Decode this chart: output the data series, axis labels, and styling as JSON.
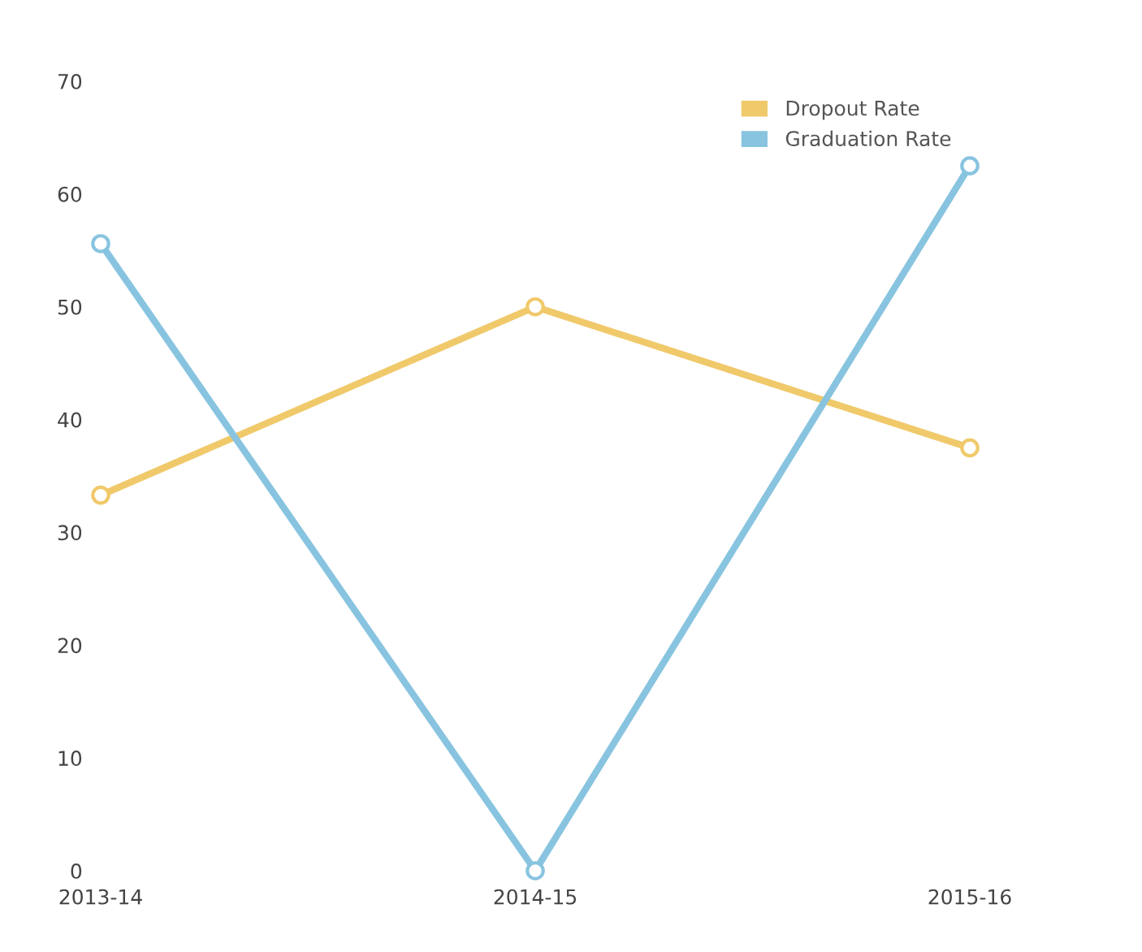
{
  "chart_data": {
    "type": "line",
    "categories": [
      "2013-14",
      "2014-15",
      "2015-16"
    ],
    "series": [
      {
        "name": "Dropout Rate",
        "color": "#f0c96a",
        "values": [
          33.3,
          50,
          37.5
        ]
      },
      {
        "name": "Graduation Rate",
        "color": "#88c4e0",
        "values": [
          55.6,
          0,
          62.5
        ]
      }
    ],
    "ylim": [
      0,
      70
    ],
    "yticks": [
      0,
      10,
      20,
      30,
      40,
      50,
      60,
      70
    ],
    "grid": false,
    "legend": "top right",
    "marker": "circle",
    "line_style": "solid"
  }
}
